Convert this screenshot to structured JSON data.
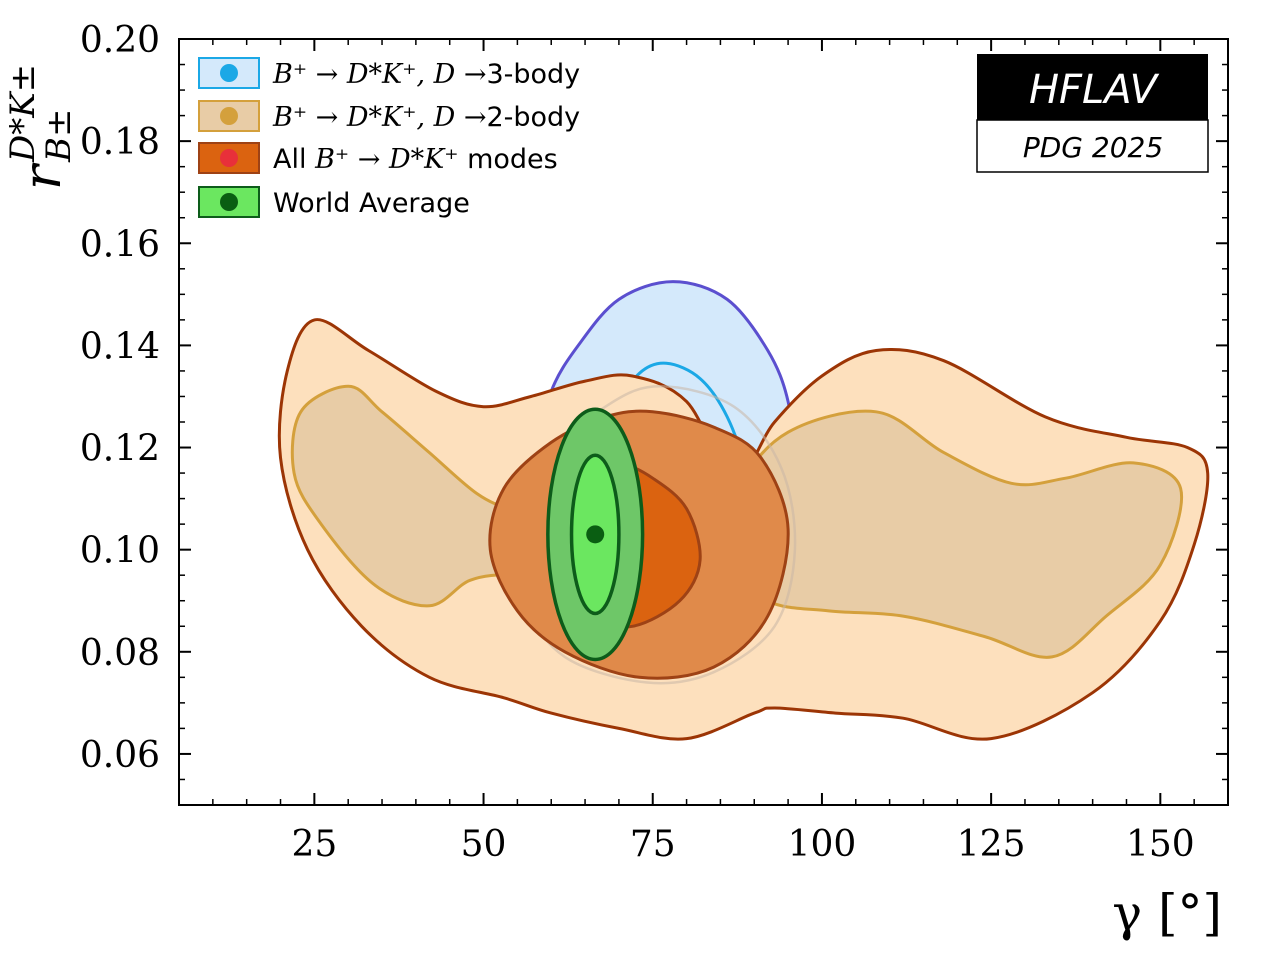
{
  "chart_data": {
    "type": "contour",
    "xlabel": "γ [°]",
    "ylabel_main": "r",
    "ylabel_sup": "D*K±",
    "ylabel_sub": "B±",
    "xlim": [
      5,
      160
    ],
    "ylim": [
      0.05,
      0.2
    ],
    "xticks": [
      25,
      50,
      75,
      100,
      125,
      150
    ],
    "xtick_labels": [
      "25",
      "50",
      "75",
      "100",
      "125",
      "150"
    ],
    "yticks": [
      0.06,
      0.08,
      0.1,
      0.12,
      0.14,
      0.16,
      0.18,
      0.2
    ],
    "ytick_labels": [
      "0.06",
      "0.08",
      "0.10",
      "0.12",
      "0.14",
      "0.16",
      "0.18",
      "0.20"
    ],
    "legend_position": "top-left",
    "series": [
      {
        "name": "B+ → D*K+, D →3-body",
        "legend_math": "B⁺ → D*K⁺, D →",
        "legend_tail": "3-body",
        "fill": "#d4e9fb",
        "line": "#1ba8e6",
        "outer_line": "#5b4fcf",
        "marker": "#1ba8e6",
        "contours": [
          {
            "level": "1σ",
            "points": [
              [
                88.5,
                0.116
              ],
              [
                86,
                0.126
              ],
              [
                82,
                0.1335
              ],
              [
                77,
                0.1365
              ],
              [
                73,
                0.1345
              ],
              [
                70,
                0.128
              ],
              [
                68,
                0.119
              ],
              [
                67,
                0.108
              ],
              [
                70,
                0.098
              ],
              [
                77,
                0.094
              ],
              [
                84,
                0.098
              ],
              [
                88,
                0.108
              ]
            ]
          },
          {
            "level": "2σ",
            "points": [
              [
                95,
                0.129
              ],
              [
                92,
                0.139
              ],
              [
                86,
                0.149
              ],
              [
                78,
                0.1525
              ],
              [
                70,
                0.149
              ],
              [
                64,
                0.14
              ],
              [
                60,
                0.131
              ],
              [
                58,
                0.119
              ],
              [
                58,
                0.104
              ],
              [
                60,
                0.093
              ],
              [
                66,
                0.083
              ],
              [
                75,
                0.078
              ],
              [
                85,
                0.081
              ],
              [
                92,
                0.089
              ],
              [
                96,
                0.101
              ],
              [
                96,
                0.116
              ]
            ]
          }
        ]
      },
      {
        "name": "B+ → D*K+, D →2-body",
        "legend_math": "B⁺ → D*K⁺, D →",
        "legend_tail": "2-body",
        "fill": "#fde0bd",
        "inner_fill": "#e8ccA6",
        "line": "#d4a03c",
        "outer_line": "#9c3505",
        "marker": "#d4a03c",
        "contours": [
          {
            "level": "1σ-left",
            "points": [
              [
                30,
                0.132
              ],
              [
                35,
                0.127
              ],
              [
                42,
                0.119
              ],
              [
                49,
                0.111
              ],
              [
                54,
                0.108
              ],
              [
                58,
                0.108
              ],
              [
                58,
                0.093
              ],
              [
                54,
                0.095
              ],
              [
                48,
                0.094
              ],
              [
                42,
                0.089
              ],
              [
                34,
                0.093
              ],
              [
                26,
                0.105
              ],
              [
                22,
                0.115
              ],
              [
                23,
                0.127
              ]
            ]
          },
          {
            "level": "1σ-right",
            "points": [
              [
                108,
                0.127
              ],
              [
                118,
                0.119
              ],
              [
                128,
                0.113
              ],
              [
                136,
                0.114
              ],
              [
                146,
                0.117
              ],
              [
                153,
                0.112
              ],
              [
                150,
                0.097
              ],
              [
                142,
                0.087
              ],
              [
                134,
                0.079
              ],
              [
                124,
                0.083
              ],
              [
                112,
                0.087
              ],
              [
                101,
                0.088
              ],
              [
                92,
                0.09
              ],
              [
                88,
                0.098
              ],
              [
                88,
                0.112
              ],
              [
                95,
                0.123
              ]
            ]
          },
          {
            "level": "2σ",
            "points": [
              [
                25,
                0.145
              ],
              [
                33,
                0.139
              ],
              [
                43,
                0.131
              ],
              [
                50,
                0.128
              ],
              [
                57,
                0.13
              ],
              [
                65,
                0.133
              ],
              [
                72,
                0.134
              ],
              [
                80,
                0.129
              ],
              [
                87,
                0.114
              ],
              [
                93,
                0.125
              ],
              [
                100,
                0.134
              ],
              [
                108,
                0.139
              ],
              [
                118,
                0.137
              ],
              [
                133,
                0.126
              ],
              [
                145,
                0.122
              ],
              [
                154,
                0.12
              ],
              [
                157,
                0.115
              ],
              [
                155,
                0.101
              ],
              [
                150,
                0.086
              ],
              [
                140,
                0.072
              ],
              [
                125,
                0.063
              ],
              [
                112,
                0.067
              ],
              [
                102,
                0.068
              ],
              [
                93,
                0.069
              ],
              [
                90,
                0.068
              ],
              [
                80,
                0.063
              ],
              [
                70,
                0.065
              ],
              [
                60,
                0.068
              ],
              [
                53,
                0.071
              ],
              [
                42,
                0.075
              ],
              [
                32,
                0.085
              ],
              [
                24,
                0.1
              ],
              [
                20,
                0.118
              ],
              [
                21,
                0.135
              ]
            ]
          }
        ]
      },
      {
        "name": "All B+ → D*K+ modes",
        "legend_pre": "All ",
        "legend_math": "B⁺ → D*K⁺",
        "legend_tail": " modes",
        "fill": "#e08a4a",
        "inner_fill": "#db6310",
        "line": "#9e4215",
        "marker": "#e8303a",
        "contours": [
          {
            "level": "1σ",
            "points": [
              [
                70,
                0.117
              ],
              [
                75,
                0.114
              ],
              [
                80,
                0.108
              ],
              [
                82,
                0.098
              ],
              [
                79,
                0.09
              ],
              [
                72,
                0.085
              ],
              [
                66,
                0.087
              ],
              [
                62,
                0.097
              ],
              [
                63,
                0.108
              ],
              [
                66,
                0.116
              ]
            ]
          },
          {
            "level": "2σ",
            "points": [
              [
                75,
                0.127
              ],
              [
                84,
                0.124
              ],
              [
                91,
                0.118
              ],
              [
                95,
                0.104
              ],
              [
                92,
                0.087
              ],
              [
                84,
                0.077
              ],
              [
                73,
                0.075
              ],
              [
                62,
                0.08
              ],
              [
                55,
                0.088
              ],
              [
                51,
                0.1
              ],
              [
                53,
                0.112
              ],
              [
                60,
                0.121
              ],
              [
                68,
                0.126
              ]
            ]
          }
        ]
      },
      {
        "name": "World Average",
        "fill": "#6ec768",
        "inner_fill": "#6be760",
        "line": "#0d5c1a",
        "marker": "#0a5e12",
        "central": [
          66.5,
          0.103
        ],
        "contours": [
          {
            "level": "1σ",
            "center": [
              66.5,
              0.103
            ],
            "sx": 3.5,
            "sy": 0.0155
          },
          {
            "level": "2σ",
            "center": [
              66.5,
              0.103
            ],
            "sx": 7.0,
            "sy": 0.0245
          }
        ]
      }
    ],
    "faint_contour": {
      "points": [
        [
          76,
          0.132
        ],
        [
          87,
          0.128
        ],
        [
          94,
          0.116
        ],
        [
          96,
          0.1
        ],
        [
          93,
          0.085
        ],
        [
          84,
          0.076
        ],
        [
          74,
          0.074
        ],
        [
          62,
          0.079
        ],
        [
          56,
          0.09
        ],
        [
          55,
          0.104
        ],
        [
          60,
          0.118
        ],
        [
          68,
          0.128
        ]
      ]
    }
  },
  "badge": {
    "title": "HFLAV",
    "subtitle": "PDG 2025"
  }
}
